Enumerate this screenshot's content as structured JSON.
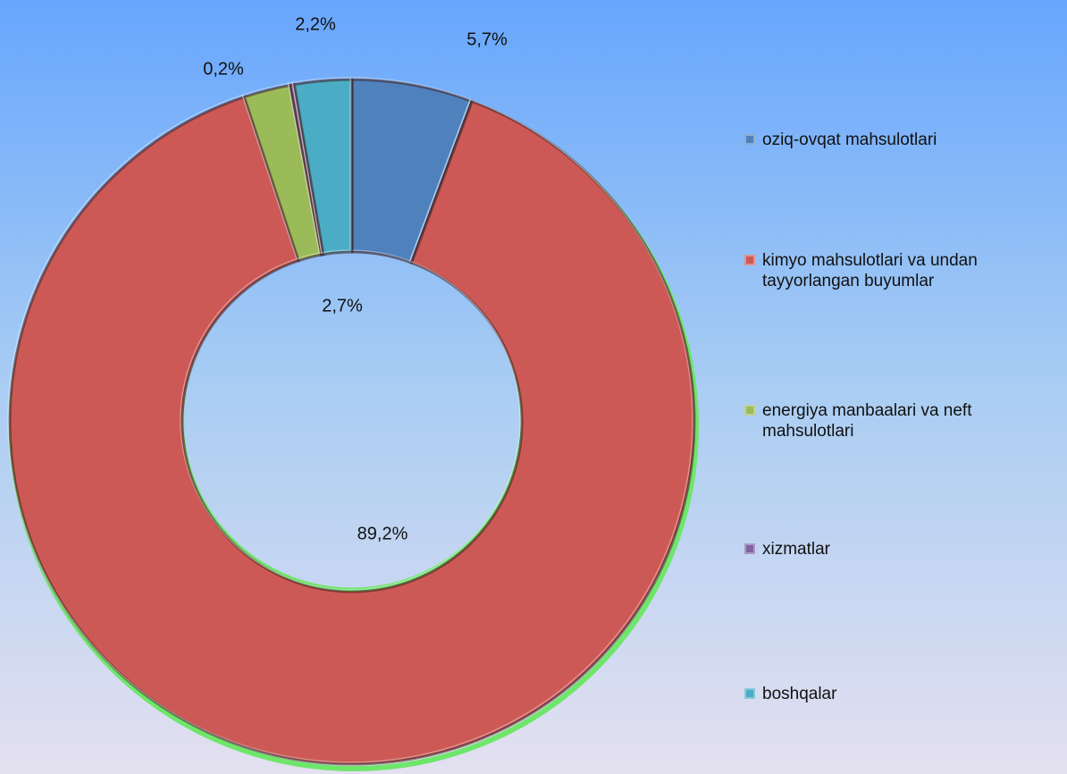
{
  "chart_data": {
    "type": "donut",
    "categories": [
      "oziq-ovqat mahsulotlari",
      "kimyo mahsulotlari va undan tayyorlangan buyumlar",
      "energiya manbaalari va neft mahsulotlari",
      "xizmatlar",
      "boshqalar"
    ],
    "values": [
      5.7,
      89.2,
      2.2,
      0.2,
      2.7
    ],
    "value_labels": [
      "5,7%",
      "89,2%",
      "2,2%",
      "0,2%",
      "2,7%"
    ],
    "colors": [
      "#4f81bd",
      "#cd5956",
      "#9bbb59",
      "#8064a2",
      "#4bacc6"
    ],
    "legend": "right"
  }
}
